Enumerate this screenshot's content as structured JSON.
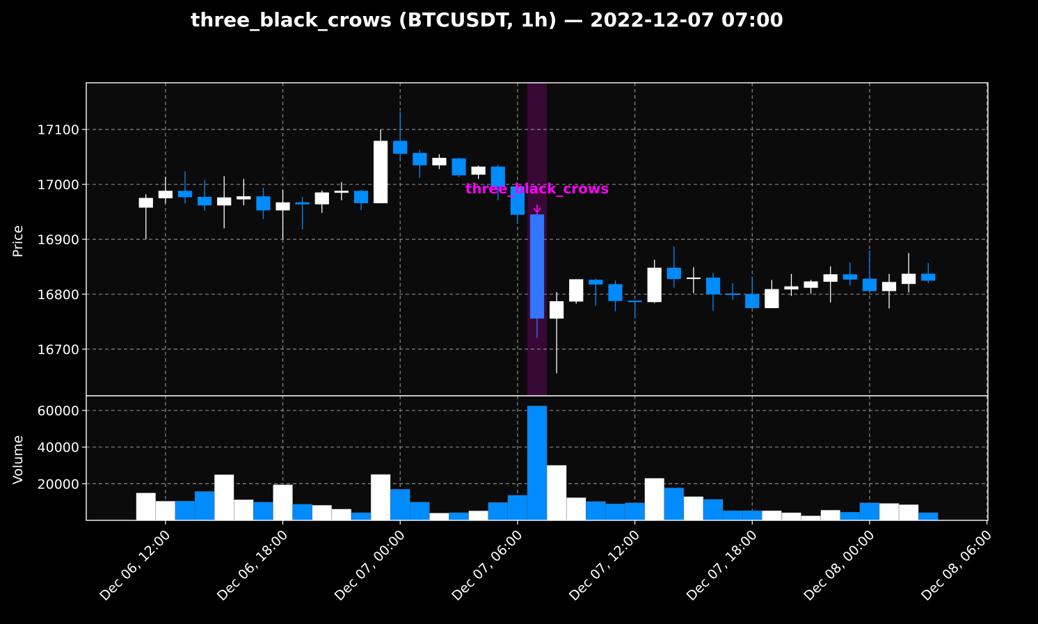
{
  "chart_data": {
    "type": "candlestick",
    "title": "three_black_crows (BTCUSDT, 1h) — 2022-12-07 07:00",
    "colors": {
      "background": "#000000",
      "panel": "#0b0b0b",
      "up": "#ffffff",
      "down": "#008cff",
      "highlight_candle": "#3375ff",
      "highlight_band": "#4a0a45",
      "annotation": "#ff00ff",
      "grid": "#888888"
    },
    "price_panel": {
      "ylabel": "Price",
      "ylim": [
        16615,
        17185
      ],
      "yticks": [
        16700,
        16800,
        16900,
        17000,
        17100
      ]
    },
    "volume_panel": {
      "ylabel": "Volume",
      "ylim": [
        0,
        68000
      ],
      "yticks": [
        20000,
        40000,
        60000
      ]
    },
    "x_axis": {
      "xlim_hours": [
        -4.05,
        42.05
      ],
      "ticks": [
        {
          "h": 0,
          "label": "Dec 06, 12:00"
        },
        {
          "h": 6,
          "label": "Dec 06, 18:00"
        },
        {
          "h": 12,
          "label": "Dec 07, 00:00"
        },
        {
          "h": 18,
          "label": "Dec 07, 06:00"
        },
        {
          "h": 24,
          "label": "Dec 07, 12:00"
        },
        {
          "h": 30,
          "label": "Dec 07, 18:00"
        },
        {
          "h": 36,
          "label": "Dec 08, 00:00"
        },
        {
          "h": 42,
          "label": "Dec 08, 06:00"
        }
      ]
    },
    "highlight": {
      "h": 19,
      "label": "three_black_crows",
      "price": 16948
    },
    "candles": [
      {
        "h": -1,
        "time": "Dec 06 11:00",
        "open": 16958,
        "high": 16982,
        "low": 16900,
        "close": 16975,
        "volume": 15000
      },
      {
        "h": 0,
        "time": "Dec 06 12:00",
        "open": 16975,
        "high": 17014,
        "low": 16965,
        "close": 16988,
        "volume": 10500
      },
      {
        "h": 1,
        "time": "Dec 06 13:00",
        "open": 16988,
        "high": 17024,
        "low": 16965,
        "close": 16977,
        "volume": 10500
      },
      {
        "h": 2,
        "time": "Dec 06 14:00",
        "open": 16977,
        "high": 17008,
        "low": 16952,
        "close": 16962,
        "volume": 15800
      },
      {
        "h": 3,
        "time": "Dec 06 15:00",
        "open": 16962,
        "high": 17015,
        "low": 16920,
        "close": 16976,
        "volume": 25000
      },
      {
        "h": 4,
        "time": "Dec 06 16:00",
        "open": 16973,
        "high": 17010,
        "low": 16962,
        "close": 16978,
        "volume": 11300
      },
      {
        "h": 5,
        "time": "Dec 06 17:00",
        "open": 16978,
        "high": 16994,
        "low": 16937,
        "close": 16953,
        "volume": 10000
      },
      {
        "h": 6,
        "time": "Dec 06 18:00",
        "open": 16953,
        "high": 16990,
        "low": 16900,
        "close": 16967,
        "volume": 19500
      },
      {
        "h": 7,
        "time": "Dec 06 19:00",
        "open": 16967,
        "high": 16977,
        "low": 16918,
        "close": 16964,
        "volume": 8800
      },
      {
        "h": 8,
        "time": "Dec 06 20:00",
        "open": 16964,
        "high": 16989,
        "low": 16948,
        "close": 16985,
        "volume": 8300
      },
      {
        "h": 9,
        "time": "Dec 06 21:00",
        "open": 16985,
        "high": 17004,
        "low": 16971,
        "close": 16988,
        "volume": 6200
      },
      {
        "h": 10,
        "time": "Dec 06 22:00",
        "open": 16988,
        "high": 16990,
        "low": 16953,
        "close": 16966,
        "volume": 4200
      },
      {
        "h": 11,
        "time": "Dec 06 23:00",
        "open": 16966,
        "high": 17100,
        "low": 16966,
        "close": 17079,
        "volume": 25100
      },
      {
        "h": 12,
        "time": "Dec 07 00:00",
        "open": 17079,
        "high": 17132,
        "low": 17043,
        "close": 17056,
        "volume": 17000
      },
      {
        "h": 13,
        "time": "Dec 07 01:00",
        "open": 17057,
        "high": 17063,
        "low": 17012,
        "close": 17035,
        "volume": 10000
      },
      {
        "h": 14,
        "time": "Dec 07 02:00",
        "open": 17035,
        "high": 17055,
        "low": 17028,
        "close": 17048,
        "volume": 4000
      },
      {
        "h": 15,
        "time": "Dec 07 03:00",
        "open": 17047,
        "high": 17048,
        "low": 17013,
        "close": 17017,
        "volume": 4200
      },
      {
        "h": 16,
        "time": "Dec 07 04:00",
        "open": 17018,
        "high": 17034,
        "low": 17010,
        "close": 17032,
        "volume": 5200
      },
      {
        "h": 17,
        "time": "Dec 07 05:00",
        "open": 17032,
        "high": 17036,
        "low": 16971,
        "close": 16996,
        "volume": 9800
      },
      {
        "h": 18,
        "time": "Dec 07 06:00",
        "open": 16996,
        "high": 16997,
        "low": 16929,
        "close": 16945,
        "volume": 13700
      },
      {
        "h": 19,
        "time": "Dec 07 07:00",
        "open": 16945,
        "high": 16950,
        "low": 16721,
        "close": 16756,
        "volume": 62500
      },
      {
        "h": 20,
        "time": "Dec 07 08:00",
        "open": 16756,
        "high": 16804,
        "low": 16656,
        "close": 16787,
        "volume": 30100
      },
      {
        "h": 21,
        "time": "Dec 07 09:00",
        "open": 16787,
        "high": 16827,
        "low": 16783,
        "close": 16827,
        "volume": 12400
      },
      {
        "h": 22,
        "time": "Dec 07 10:00",
        "open": 16826,
        "high": 16828,
        "low": 16779,
        "close": 16818,
        "volume": 10300
      },
      {
        "h": 23,
        "time": "Dec 07 11:00",
        "open": 16818,
        "high": 16825,
        "low": 16769,
        "close": 16788,
        "volume": 9000
      },
      {
        "h": 24,
        "time": "Dec 07 12:00",
        "open": 16788,
        "high": 16789,
        "low": 16756,
        "close": 16786,
        "volume": 9600
      },
      {
        "h": 25,
        "time": "Dec 07 13:00",
        "open": 16786,
        "high": 16863,
        "low": 16784,
        "close": 16848,
        "volume": 23000
      },
      {
        "h": 26,
        "time": "Dec 07 14:00",
        "open": 16848,
        "high": 16887,
        "low": 16812,
        "close": 16828,
        "volume": 17700
      },
      {
        "h": 27,
        "time": "Dec 07 15:00",
        "open": 16828,
        "high": 16849,
        "low": 16802,
        "close": 16830,
        "volume": 13000
      },
      {
        "h": 28,
        "time": "Dec 07 16:00",
        "open": 16830,
        "high": 16839,
        "low": 16770,
        "close": 16800,
        "volume": 11500
      },
      {
        "h": 29,
        "time": "Dec 07 17:00",
        "open": 16801,
        "high": 16820,
        "low": 16790,
        "close": 16799,
        "volume": 5300
      },
      {
        "h": 30,
        "time": "Dec 07 18:00",
        "open": 16800,
        "high": 16832,
        "low": 16775,
        "close": 16775,
        "volume": 5300
      },
      {
        "h": 31,
        "time": "Dec 07 19:00",
        "open": 16775,
        "high": 16826,
        "low": 16775,
        "close": 16809,
        "volume": 5300
      },
      {
        "h": 32,
        "time": "Dec 07 20:00",
        "open": 16809,
        "high": 16837,
        "low": 16797,
        "close": 16814,
        "volume": 4200
      },
      {
        "h": 33,
        "time": "Dec 07 21:00",
        "open": 16812,
        "high": 16826,
        "low": 16801,
        "close": 16823,
        "volume": 2500
      },
      {
        "h": 34,
        "time": "Dec 07 22:00",
        "open": 16823,
        "high": 16851,
        "low": 16785,
        "close": 16836,
        "volume": 5600
      },
      {
        "h": 35,
        "time": "Dec 07 23:00",
        "open": 16836,
        "high": 16858,
        "low": 16816,
        "close": 16827,
        "volume": 4500
      },
      {
        "h": 36,
        "time": "Dec 08 00:00",
        "open": 16828,
        "high": 16880,
        "low": 16806,
        "close": 16806,
        "volume": 9600
      },
      {
        "h": 37,
        "time": "Dec 08 01:00",
        "open": 16806,
        "high": 16837,
        "low": 16774,
        "close": 16822,
        "volume": 9300
      },
      {
        "h": 38,
        "time": "Dec 08 02:00",
        "open": 16819,
        "high": 16875,
        "low": 16803,
        "close": 16837,
        "volume": 8600
      },
      {
        "h": 39,
        "time": "Dec 08 03:00",
        "open": 16837,
        "high": 16857,
        "low": 16820,
        "close": 16825,
        "volume": 4200
      }
    ]
  }
}
